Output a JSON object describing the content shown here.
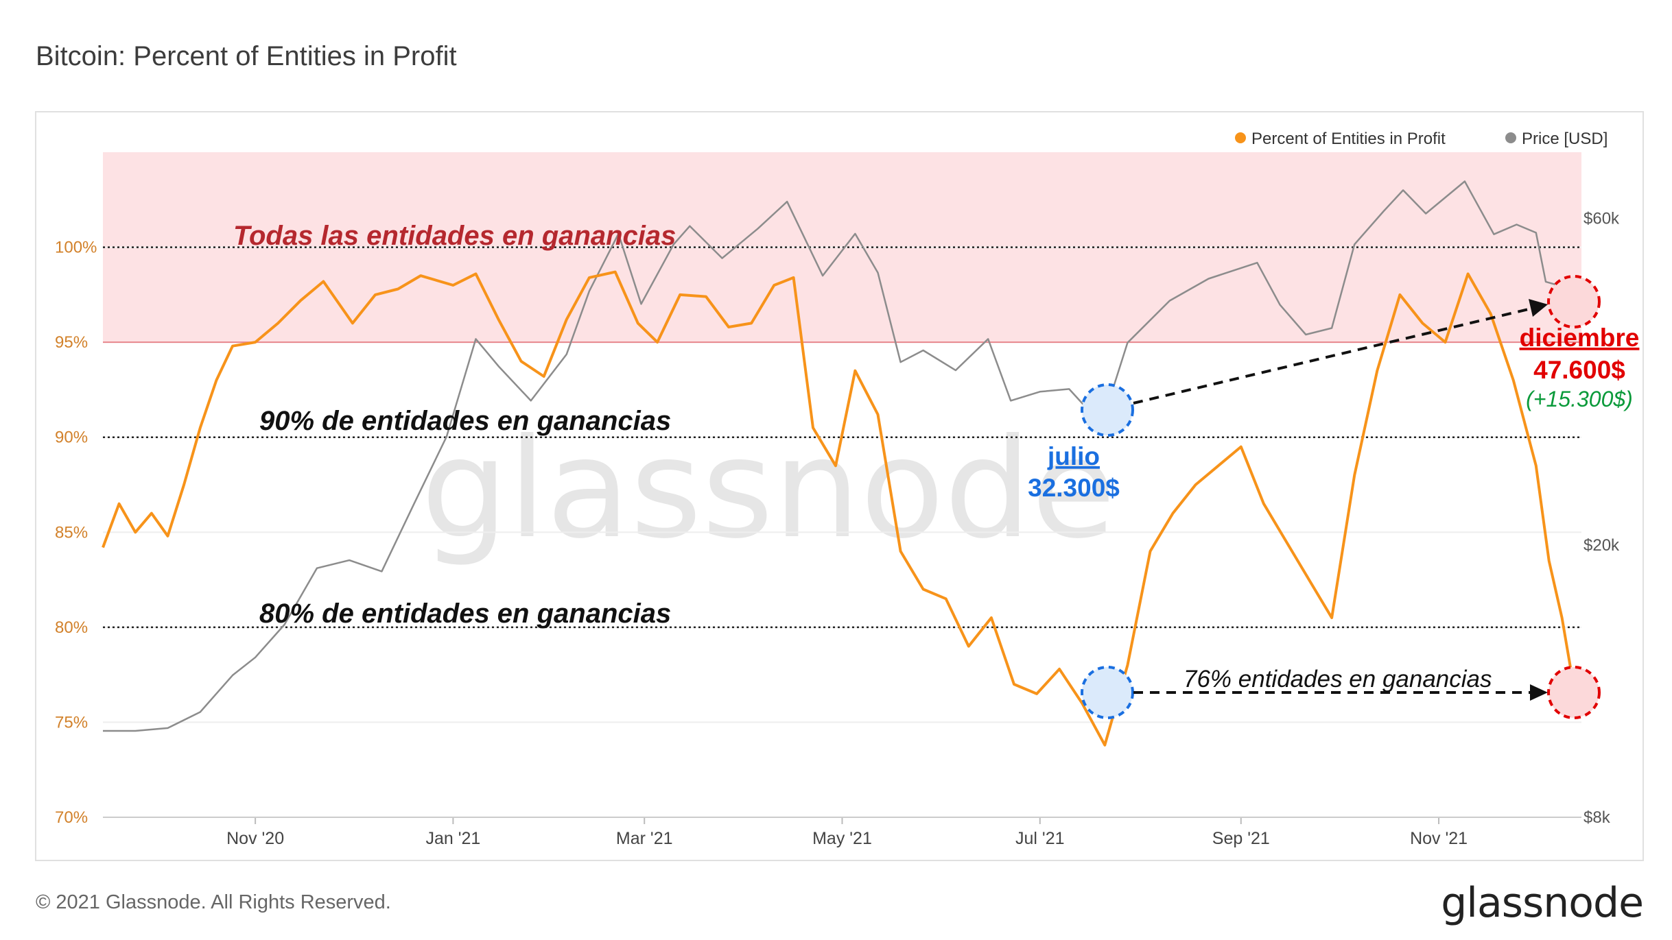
{
  "title": "Bitcoin: Percent of Entities in Profit",
  "footer": "© 2021 Glassnode. All Rights Reserved.",
  "brand": "glassnode",
  "watermark": "glassnode",
  "colors": {
    "profit": "#f7931a",
    "price": "#8c8c8c",
    "band": "#fde2e4",
    "band_line": "#e8868c",
    "axis_left": "#d2812a",
    "red_annot": "#e10000",
    "blue_annot": "#1a6fe0",
    "green_annot": "#0a9a3a"
  },
  "chart_data": {
    "type": "line",
    "legend": {
      "position": "top-right",
      "entries": [
        "Percent of Entities in Profit",
        "Price [USD]"
      ]
    },
    "x_range": [
      "2020-09-15",
      "2021-12-15"
    ],
    "x_ticks": [
      {
        "date": "2020-11-01",
        "label": "Nov '20"
      },
      {
        "date": "2021-01-01",
        "label": "Jan '21"
      },
      {
        "date": "2021-03-01",
        "label": "Mar '21"
      },
      {
        "date": "2021-05-01",
        "label": "May '21"
      },
      {
        "date": "2021-07-01",
        "label": "Jul '21"
      },
      {
        "date": "2021-09-01",
        "label": "Sep '21"
      },
      {
        "date": "2021-11-01",
        "label": "Nov '21"
      }
    ],
    "y_left": {
      "min": 70,
      "max": 105,
      "ticks": [
        {
          "v": 70,
          "label": "70%"
        },
        {
          "v": 75,
          "label": "75%"
        },
        {
          "v": 80,
          "label": "80%"
        },
        {
          "v": 85,
          "label": "85%"
        },
        {
          "v": 90,
          "label": "90%"
        },
        {
          "v": 95,
          "label": "95%"
        },
        {
          "v": 100,
          "label": "100%"
        }
      ]
    },
    "y_right": {
      "scale": "log",
      "min": 8000,
      "max": 75000,
      "ticks": [
        {
          "v": 8000,
          "label": "$8k"
        },
        {
          "v": 20000,
          "label": "$20k"
        },
        {
          "v": 60000,
          "label": "$60k"
        }
      ]
    },
    "series": [
      {
        "name": "Percent of Entities in Profit",
        "axis": "left",
        "points": [
          [
            "2020-09-15",
            84.2
          ],
          [
            "2020-09-20",
            86.5
          ],
          [
            "2020-09-25",
            85.0
          ],
          [
            "2020-09-30",
            86.0
          ],
          [
            "2020-10-05",
            84.8
          ],
          [
            "2020-10-10",
            87.5
          ],
          [
            "2020-10-15",
            90.5
          ],
          [
            "2020-10-20",
            93.0
          ],
          [
            "2020-10-25",
            94.8
          ],
          [
            "2020-11-01",
            95.0
          ],
          [
            "2020-11-08",
            96.0
          ],
          [
            "2020-11-15",
            97.2
          ],
          [
            "2020-11-22",
            98.2
          ],
          [
            "2020-12-01",
            96.0
          ],
          [
            "2020-12-08",
            97.5
          ],
          [
            "2020-12-15",
            97.8
          ],
          [
            "2020-12-22",
            98.5
          ],
          [
            "2021-01-01",
            98.0
          ],
          [
            "2021-01-08",
            98.6
          ],
          [
            "2021-01-15",
            96.2
          ],
          [
            "2021-01-22",
            94.0
          ],
          [
            "2021-01-29",
            93.2
          ],
          [
            "2021-02-05",
            96.2
          ],
          [
            "2021-02-12",
            98.4
          ],
          [
            "2021-02-20",
            98.7
          ],
          [
            "2021-02-27",
            96.0
          ],
          [
            "2021-03-05",
            95.0
          ],
          [
            "2021-03-12",
            97.5
          ],
          [
            "2021-03-20",
            97.4
          ],
          [
            "2021-03-27",
            95.8
          ],
          [
            "2021-04-03",
            96.0
          ],
          [
            "2021-04-10",
            98.0
          ],
          [
            "2021-04-16",
            98.4
          ],
          [
            "2021-04-22",
            90.5
          ],
          [
            "2021-04-29",
            88.5
          ],
          [
            "2021-05-05",
            93.5
          ],
          [
            "2021-05-12",
            91.2
          ],
          [
            "2021-05-19",
            84.0
          ],
          [
            "2021-05-26",
            82.0
          ],
          [
            "2021-06-02",
            81.5
          ],
          [
            "2021-06-09",
            79.0
          ],
          [
            "2021-06-16",
            80.5
          ],
          [
            "2021-06-23",
            77.0
          ],
          [
            "2021-06-30",
            76.5
          ],
          [
            "2021-07-07",
            77.8
          ],
          [
            "2021-07-14",
            76.0
          ],
          [
            "2021-07-21",
            73.8
          ],
          [
            "2021-07-28",
            78.0
          ],
          [
            "2021-08-04",
            84.0
          ],
          [
            "2021-08-11",
            86.0
          ],
          [
            "2021-08-18",
            87.5
          ],
          [
            "2021-08-25",
            88.5
          ],
          [
            "2021-09-01",
            89.5
          ],
          [
            "2021-09-08",
            86.5
          ],
          [
            "2021-09-15",
            84.5
          ],
          [
            "2021-09-22",
            82.5
          ],
          [
            "2021-09-29",
            80.5
          ],
          [
            "2021-10-06",
            88.0
          ],
          [
            "2021-10-13",
            93.5
          ],
          [
            "2021-10-20",
            97.5
          ],
          [
            "2021-10-27",
            96.0
          ],
          [
            "2021-11-03",
            95.0
          ],
          [
            "2021-11-10",
            98.6
          ],
          [
            "2021-11-17",
            96.5
          ],
          [
            "2021-11-24",
            93.0
          ],
          [
            "2021-12-01",
            88.5
          ],
          [
            "2021-12-05",
            83.5
          ],
          [
            "2021-12-09",
            80.5
          ],
          [
            "2021-12-12",
            77.5
          ],
          [
            "2021-12-15",
            76.5
          ]
        ]
      },
      {
        "name": "Price [USD]",
        "axis": "right",
        "points": [
          [
            "2020-09-15",
            10700
          ],
          [
            "2020-09-25",
            10700
          ],
          [
            "2020-10-05",
            10800
          ],
          [
            "2020-10-15",
            11400
          ],
          [
            "2020-10-25",
            12900
          ],
          [
            "2020-11-01",
            13700
          ],
          [
            "2020-11-10",
            15300
          ],
          [
            "2020-11-20",
            18500
          ],
          [
            "2020-11-30",
            19000
          ],
          [
            "2020-12-10",
            18300
          ],
          [
            "2020-12-20",
            23000
          ],
          [
            "2020-12-30",
            28800
          ],
          [
            "2021-01-08",
            40000
          ],
          [
            "2021-01-15",
            36500
          ],
          [
            "2021-01-25",
            32500
          ],
          [
            "2021-02-05",
            38000
          ],
          [
            "2021-02-12",
            47000
          ],
          [
            "2021-02-21",
            57000
          ],
          [
            "2021-02-28",
            45000
          ],
          [
            "2021-03-10",
            55000
          ],
          [
            "2021-03-15",
            58500
          ],
          [
            "2021-03-25",
            52500
          ],
          [
            "2021-04-05",
            58000
          ],
          [
            "2021-04-14",
            63500
          ],
          [
            "2021-04-25",
            49500
          ],
          [
            "2021-05-05",
            57000
          ],
          [
            "2021-05-12",
            50000
          ],
          [
            "2021-05-19",
            37000
          ],
          [
            "2021-05-26",
            38500
          ],
          [
            "2021-06-05",
            36000
          ],
          [
            "2021-06-15",
            40000
          ],
          [
            "2021-06-22",
            32500
          ],
          [
            "2021-07-01",
            33500
          ],
          [
            "2021-07-10",
            33800
          ],
          [
            "2021-07-20",
            30000
          ],
          [
            "2021-07-28",
            39500
          ],
          [
            "2021-08-10",
            45500
          ],
          [
            "2021-08-22",
            49000
          ],
          [
            "2021-09-06",
            51700
          ],
          [
            "2021-09-13",
            44900
          ],
          [
            "2021-09-21",
            40600
          ],
          [
            "2021-09-29",
            41500
          ],
          [
            "2021-10-06",
            55000
          ],
          [
            "2021-10-15",
            61500
          ],
          [
            "2021-10-21",
            66000
          ],
          [
            "2021-10-28",
            61000
          ],
          [
            "2021-11-09",
            68000
          ],
          [
            "2021-11-18",
            56900
          ],
          [
            "2021-11-25",
            58800
          ],
          [
            "2021-12-01",
            57200
          ],
          [
            "2021-12-04",
            48500
          ],
          [
            "2021-12-10",
            47600
          ],
          [
            "2021-12-15",
            48300
          ]
        ]
      }
    ],
    "reference_lines": [
      {
        "value": 100,
        "style": "dotted"
      },
      {
        "value": 95,
        "style": "solid-red"
      },
      {
        "value": 90,
        "style": "dotted"
      },
      {
        "value": 80,
        "style": "dotted"
      }
    ],
    "shaded_band": {
      "from": 95,
      "to": 105
    }
  },
  "annotations": {
    "all_profit": "Todas las entidades en ganancias",
    "ninety": "90% de entidades en ganancias",
    "eighty": "80% de entidades en ganancias",
    "seventy_six": "76% entidades en ganancias",
    "july_month": "julio",
    "july_price": "32.300$",
    "dec_month": "diciembre",
    "dec_price": "47.600$",
    "dec_change": "(+15.300$)"
  }
}
